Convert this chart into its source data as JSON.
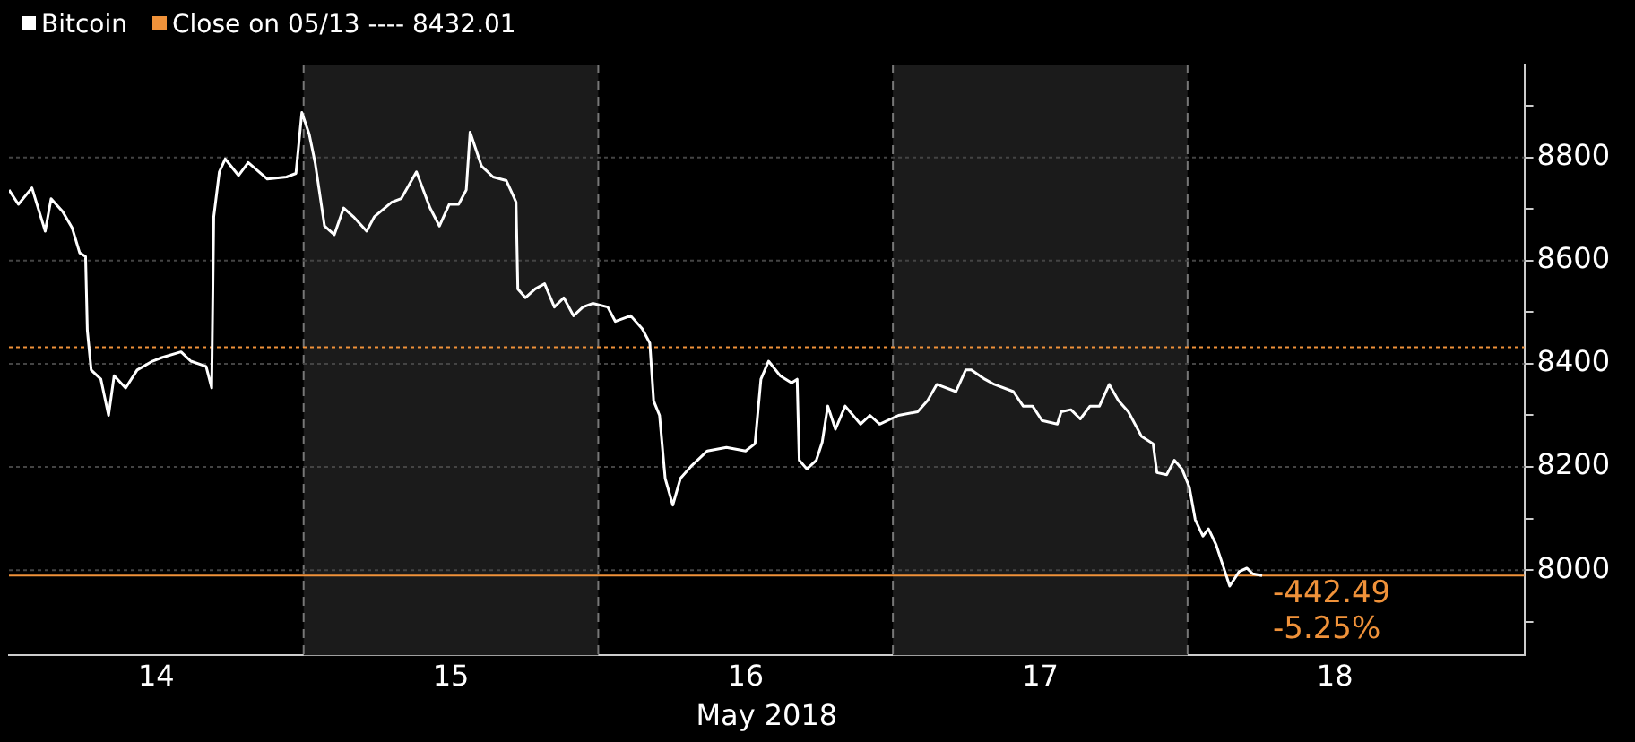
{
  "chart_data": {
    "type": "line",
    "xlabel": "May 2018",
    "legend": "top left",
    "grid": "y",
    "marker": "none",
    "line_style": "solid",
    "xlim": [
      14,
      19.143
    ],
    "xticks": [
      {
        "value": 14.5,
        "label": "14"
      },
      {
        "value": 15.5,
        "label": "15"
      },
      {
        "value": 16.5,
        "label": "16"
      },
      {
        "value": 17.5,
        "label": "17"
      },
      {
        "value": 18.5,
        "label": "18"
      }
    ],
    "ylim": [
      7835,
      8980
    ],
    "yticks": [
      {
        "value": 7900,
        "label": null
      },
      8000,
      {
        "value": 8100,
        "label": null
      },
      8200,
      {
        "value": 8300,
        "label": null
      },
      8400,
      {
        "value": 8500,
        "label": null
      },
      8600,
      {
        "value": 8700,
        "label": null
      },
      8800,
      {
        "value": 8900,
        "label": null
      }
    ],
    "series": [
      {
        "name": "Bitcoin",
        "color": "#ffffff",
        "x": [
          14.0,
          14.032,
          14.078,
          14.123,
          14.143,
          14.182,
          14.214,
          14.24,
          14.26,
          14.266,
          14.279,
          14.312,
          14.338,
          14.357,
          14.396,
          14.435,
          14.487,
          14.519,
          14.584,
          14.617,
          14.669,
          14.688,
          14.695,
          14.714,
          14.734,
          14.779,
          14.812,
          14.877,
          14.942,
          14.974,
          14.994,
          15.019,
          15.039,
          15.071,
          15.104,
          15.136,
          15.169,
          15.214,
          15.24,
          15.299,
          15.331,
          15.383,
          15.429,
          15.461,
          15.494,
          15.526,
          15.552,
          15.565,
          15.604,
          15.643,
          15.688,
          15.708,
          15.721,
          15.727,
          15.753,
          15.786,
          15.818,
          15.851,
          15.883,
          15.916,
          15.948,
          15.981,
          16.032,
          16.058,
          16.11,
          16.149,
          16.175,
          16.188,
          16.208,
          16.227,
          16.253,
          16.279,
          16.318,
          16.37,
          16.435,
          16.5,
          16.532,
          16.552,
          16.578,
          16.617,
          16.656,
          16.675,
          16.682,
          16.708,
          16.74,
          16.76,
          16.779,
          16.805,
          16.838,
          16.89,
          16.922,
          16.955,
          17.019,
          17.084,
          17.117,
          17.149,
          17.214,
          17.247,
          17.266,
          17.312,
          17.344,
          17.409,
          17.442,
          17.474,
          17.506,
          17.558,
          17.571,
          17.604,
          17.636,
          17.669,
          17.701,
          17.734,
          17.766,
          17.799,
          17.844,
          17.883,
          17.896,
          17.929,
          17.955,
          17.981,
          18.006,
          18.026,
          18.052,
          18.071,
          18.097,
          18.123,
          18.143,
          18.175,
          18.201,
          18.221,
          18.253
        ],
        "values": [
          8737,
          8709,
          8741,
          8657,
          8720,
          8695,
          8664,
          8615,
          8608,
          8465,
          8388,
          8370,
          8300,
          8377,
          8353,
          8388,
          8405,
          8412,
          8423,
          8405,
          8395,
          8353,
          8685,
          8772,
          8797,
          8765,
          8790,
          8758,
          8762,
          8769,
          8887,
          8845,
          8790,
          8667,
          8650,
          8702,
          8685,
          8657,
          8685,
          8713,
          8720,
          8772,
          8702,
          8667,
          8709,
          8709,
          8737,
          8849,
          8783,
          8762,
          8755,
          8730,
          8713,
          8545,
          8528,
          8545,
          8555,
          8510,
          8528,
          8493,
          8510,
          8517,
          8510,
          8482,
          8493,
          8468,
          8440,
          8328,
          8300,
          8178,
          8126,
          8178,
          8203,
          8231,
          8238,
          8231,
          8245,
          8370,
          8405,
          8377,
          8363,
          8370,
          8213,
          8196,
          8213,
          8248,
          8318,
          8273,
          8318,
          8283,
          8300,
          8283,
          8300,
          8307,
          8328,
          8360,
          8346,
          8388,
          8388,
          8370,
          8360,
          8346,
          8318,
          8318,
          8290,
          8283,
          8307,
          8311,
          8293,
          8318,
          8318,
          8360,
          8328,
          8307,
          8259,
          8245,
          8189,
          8185,
          8213,
          8196,
          8161,
          8098,
          8066,
          8080,
          8049,
          8004,
          7969,
          7997,
          8004,
          7993,
          7989.52
        ]
      }
    ],
    "ref_lines": [
      {
        "axis": "y",
        "value": 8432.01,
        "label": "Close on 05/13 ---- 8432.01",
        "color": "#f0923a",
        "line_style": "dotted"
      },
      {
        "axis": "y",
        "value": 7989.52,
        "color": "#f0923a",
        "line_style": "solid"
      }
    ],
    "bands": [
      {
        "axis": "x",
        "from": 15,
        "to": 16,
        "color": "#1b1b1b"
      },
      {
        "axis": "x",
        "from": 17,
        "to": 18,
        "color": "#1b1b1b"
      }
    ],
    "annotations": [
      {
        "text": "-442.49",
        "x": 18.253,
        "y": 7989.52
      },
      {
        "text": "-5.25%",
        "x": 18.253,
        "y": 7989.52
      }
    ]
  }
}
